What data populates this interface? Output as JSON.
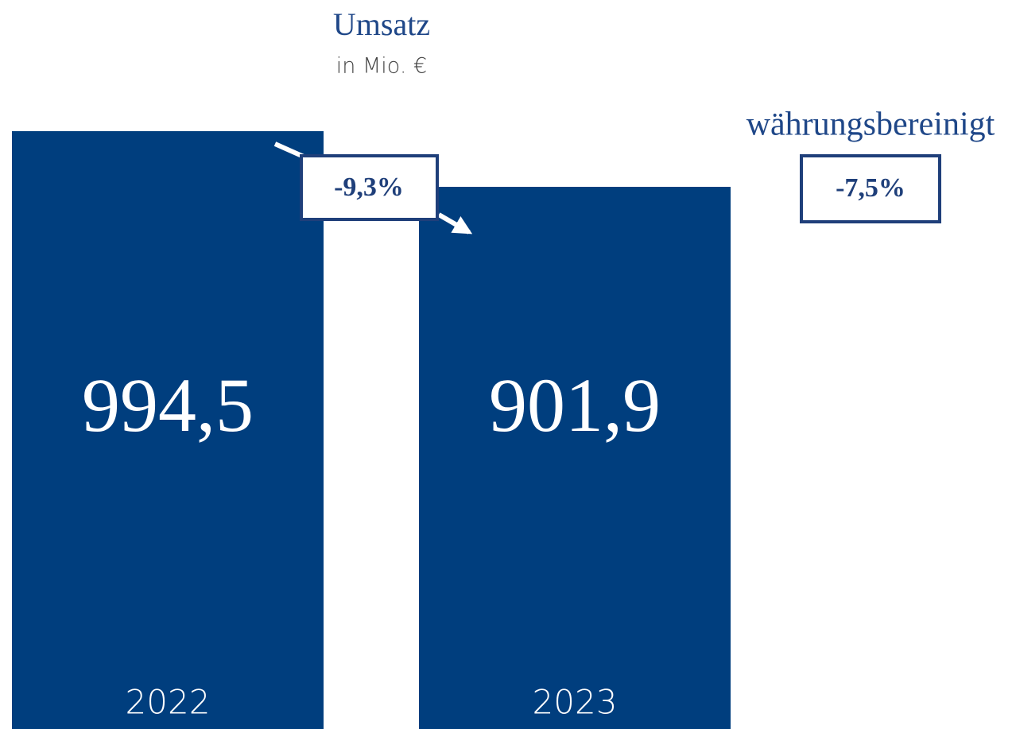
{
  "chart_data": {
    "type": "bar",
    "title": "Umsatz",
    "subtitle": "in Mio. €",
    "categories": [
      "2022",
      "2023"
    ],
    "values": [
      994.5,
      901.9
    ],
    "value_labels": [
      "994,5",
      "901,9"
    ],
    "color": "#003e7e",
    "annotations": [
      {
        "text": "-9,3%"
      },
      {
        "label": "währungsbereinigt",
        "text": "-7,5%"
      }
    ]
  }
}
